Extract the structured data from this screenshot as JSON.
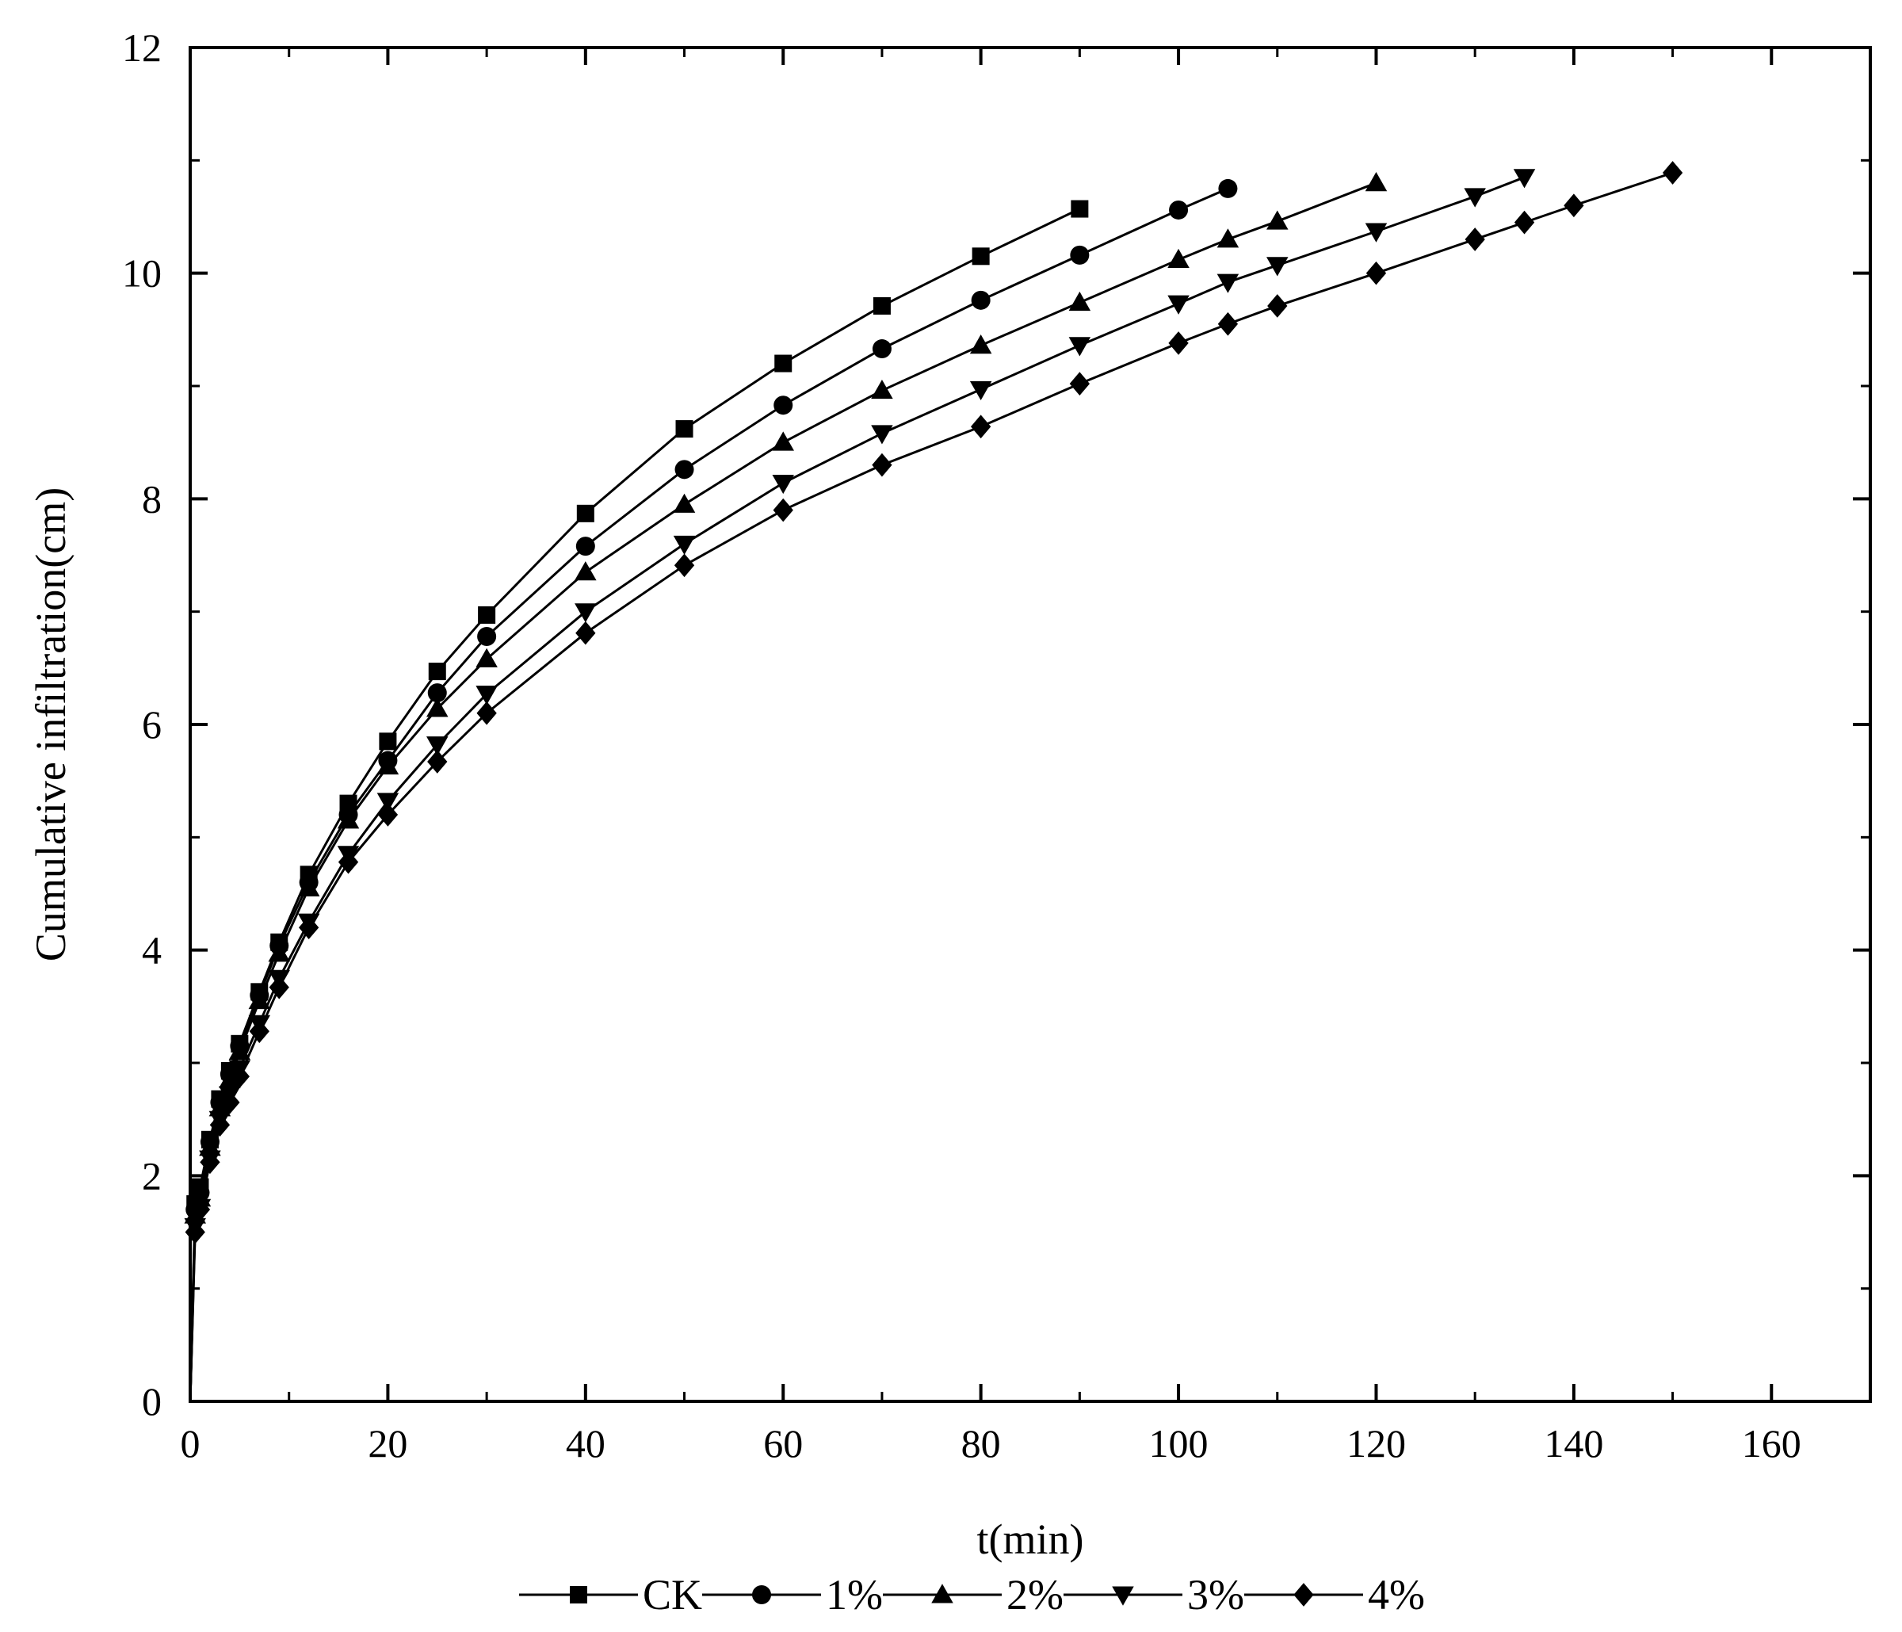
{
  "chart_data": {
    "type": "line",
    "title": "",
    "xlabel": "t(min)",
    "ylabel": "Cumulative infiltration(cm)",
    "xlim": [
      0,
      170
    ],
    "ylim": [
      0,
      12
    ],
    "xticks": [
      0,
      20,
      40,
      60,
      80,
      100,
      120,
      140,
      160
    ],
    "yticks": [
      0,
      2,
      4,
      6,
      8,
      10,
      12
    ],
    "grid": false,
    "legend_position": "bottom",
    "line_color": "#000000",
    "series": [
      {
        "name": "CK",
        "marker": "square",
        "x": [
          0,
          0.5,
          1,
          2,
          3,
          4,
          5,
          7,
          9,
          12,
          16,
          20,
          25,
          30,
          40,
          50,
          60,
          70,
          80,
          90
        ],
        "y": [
          0,
          1.75,
          1.9,
          2.32,
          2.68,
          2.93,
          3.17,
          3.63,
          4.07,
          4.67,
          5.3,
          5.85,
          6.47,
          6.97,
          7.87,
          8.62,
          9.2,
          9.71,
          10.15,
          10.57
        ]
      },
      {
        "name": "1%",
        "marker": "circle",
        "x": [
          0,
          0.5,
          1,
          2,
          3,
          4,
          5,
          7,
          9,
          12,
          16,
          20,
          25,
          30,
          40,
          50,
          60,
          70,
          80,
          90,
          100,
          105
        ],
        "y": [
          0,
          1.7,
          1.85,
          2.3,
          2.65,
          2.9,
          3.15,
          3.6,
          4.04,
          4.6,
          5.2,
          5.68,
          6.28,
          6.78,
          7.58,
          8.26,
          8.83,
          9.33,
          9.76,
          10.16,
          10.56,
          10.75
        ]
      },
      {
        "name": "2%",
        "marker": "triangle-up",
        "x": [
          0,
          0.5,
          1,
          2,
          3,
          4,
          5,
          7,
          9,
          12,
          16,
          20,
          25,
          30,
          40,
          50,
          60,
          70,
          80,
          90,
          100,
          105,
          110,
          120
        ],
        "y": [
          0,
          1.65,
          1.8,
          2.25,
          2.6,
          2.85,
          3.1,
          3.55,
          3.97,
          4.55,
          5.15,
          5.63,
          6.14,
          6.58,
          7.35,
          7.95,
          8.5,
          8.96,
          9.36,
          9.74,
          10.12,
          10.3,
          10.46,
          10.8
        ]
      },
      {
        "name": "3%",
        "marker": "triangle-down",
        "x": [
          0,
          0.5,
          1,
          2,
          3,
          4,
          5,
          7,
          9,
          12,
          16,
          20,
          25,
          30,
          40,
          50,
          60,
          70,
          80,
          90,
          100,
          105,
          110,
          120,
          130,
          135
        ],
        "y": [
          0,
          1.55,
          1.72,
          2.15,
          2.5,
          2.72,
          2.95,
          3.35,
          3.75,
          4.25,
          4.85,
          5.32,
          5.82,
          6.27,
          7.0,
          7.6,
          8.14,
          8.58,
          8.97,
          9.36,
          9.73,
          9.92,
          10.07,
          10.37,
          10.68,
          10.85
        ]
      },
      {
        "name": "4%",
        "marker": "diamond",
        "x": [
          0,
          0.5,
          1,
          2,
          3,
          4,
          5,
          7,
          9,
          12,
          16,
          20,
          25,
          30,
          40,
          50,
          60,
          70,
          80,
          90,
          100,
          105,
          110,
          120,
          130,
          135,
          140,
          150
        ],
        "y": [
          0,
          1.5,
          1.7,
          2.12,
          2.45,
          2.65,
          2.88,
          3.28,
          3.67,
          4.2,
          4.78,
          5.2,
          5.67,
          6.1,
          6.81,
          7.41,
          7.9,
          8.3,
          8.64,
          9.02,
          9.38,
          9.55,
          9.71,
          10.0,
          10.3,
          10.45,
          10.6,
          10.89
        ]
      }
    ]
  }
}
